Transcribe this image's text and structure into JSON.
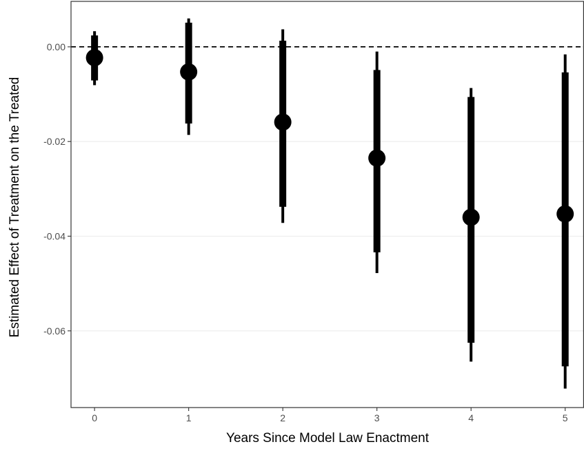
{
  "chart_data": {
    "type": "scatter",
    "xlabel": "Years Since Model Law Enactment",
    "ylabel": "Estimated Effect of Treatment on the Treated",
    "x_ticks": [
      "0",
      "1",
      "2",
      "3",
      "4",
      "5"
    ],
    "y_ticks": [
      "0.00",
      "-0.02",
      "-0.04",
      "-0.06"
    ],
    "y_tick_values": [
      0.0,
      -0.02,
      -0.04,
      -0.06
    ],
    "xlim": [
      -0.25,
      5.2
    ],
    "ylim": [
      -0.0762,
      0.0096
    ],
    "grid": true,
    "reference_line": 0,
    "series": [
      {
        "x": [
          0,
          1,
          2,
          3,
          4,
          5
        ],
        "estimate": [
          -0.0023,
          -0.0053,
          -0.0159,
          -0.0235,
          -0.036,
          -0.0353
        ],
        "ci_inner": [
          [
            -0.0071,
            0.0024
          ],
          [
            -0.0162,
            0.0051
          ],
          [
            -0.0338,
            0.0013
          ],
          [
            -0.0434,
            -0.0049
          ],
          [
            -0.0625,
            -0.0106
          ],
          [
            -0.0675,
            -0.0054
          ]
        ],
        "ci_outer": [
          [
            -0.0081,
            0.0033
          ],
          [
            -0.0186,
            0.006
          ],
          [
            -0.0372,
            0.0037
          ],
          [
            -0.0478,
            -0.001
          ],
          [
            -0.0665,
            -0.0087
          ],
          [
            -0.0722,
            -0.0016
          ]
        ]
      }
    ],
    "colors": {
      "points": "#000000",
      "grid": "#ebebeb",
      "panel_border": "#333333",
      "axis_text": "#4d4d4d"
    }
  }
}
